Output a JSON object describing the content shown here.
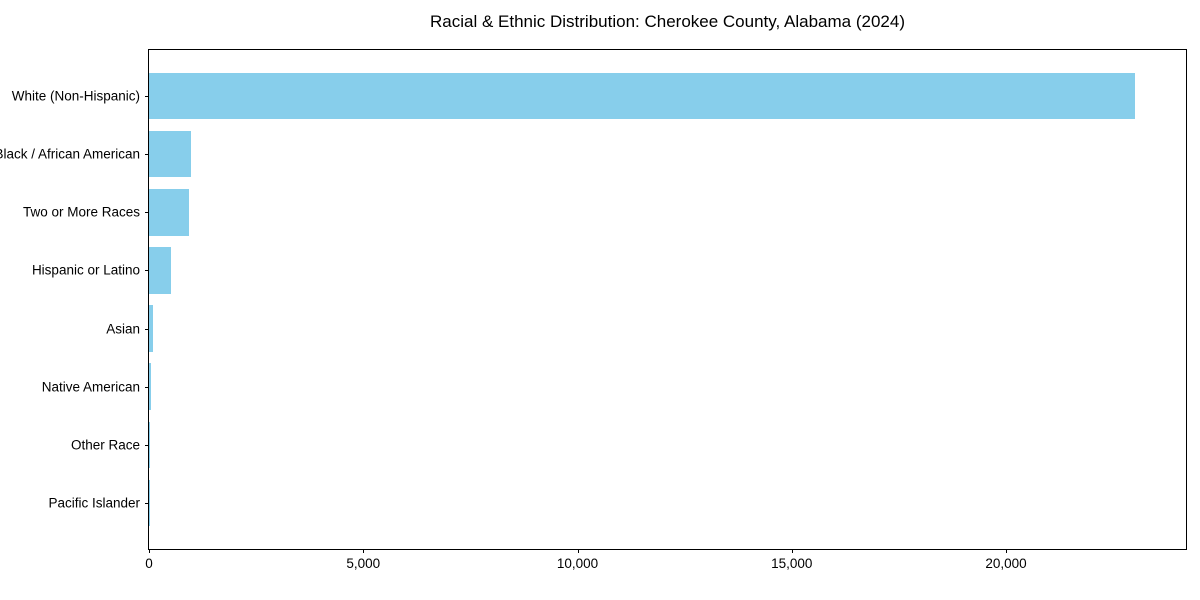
{
  "chart_data": {
    "type": "bar",
    "orientation": "horizontal",
    "title": "Racial & Ethnic Distribution: Cherokee County, Alabama (2024)",
    "categories": [
      "White (Non-Hispanic)",
      "Black / African American",
      "Two or More Races",
      "Hispanic or Latino",
      "Asian",
      "Native American",
      "Other Race",
      "Pacific Islander"
    ],
    "values": [
      23000,
      980,
      930,
      510,
      95,
      40,
      12,
      5
    ],
    "xlabel": "",
    "ylabel": "",
    "xlim": [
      0,
      24200
    ],
    "xticks": [
      0,
      5000,
      10000,
      15000,
      20000
    ],
    "xtick_labels": [
      "0",
      "5,000",
      "10,000",
      "15,000",
      "20,000"
    ],
    "bar_color": "#87CEEB",
    "axis_color": "#000000",
    "text_color": "#000000",
    "background_color": "#ffffff",
    "grid": false,
    "legend_position": "none"
  }
}
